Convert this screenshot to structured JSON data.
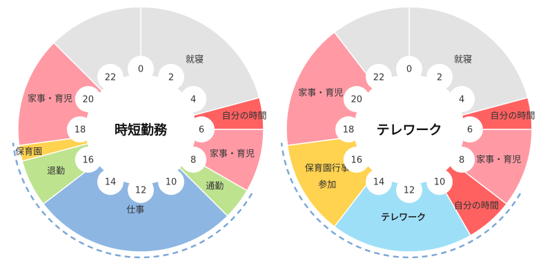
{
  "colors": {
    "sleep": "#e3e3e3",
    "personal": "#ff6161",
    "family": "#ff9aa5",
    "commute": "#bee38f",
    "work": "#8db6e3",
    "daycare": "#ffd24f",
    "telework": "#9edff8",
    "dash": "#7aa6d6"
  },
  "hour_labels": [
    "0",
    "2",
    "4",
    "6",
    "8",
    "10",
    "12",
    "14",
    "16",
    "18",
    "20",
    "22"
  ],
  "charts": [
    {
      "title": "時短勤務",
      "segments": [
        {
          "start": 0,
          "end": 5,
          "label": "就寝",
          "color": "sleep"
        },
        {
          "start": 5,
          "end": 6,
          "label": "自分の時間",
          "color": "personal"
        },
        {
          "start": 6,
          "end": 8,
          "label": "家事・育児",
          "color": "family"
        },
        {
          "start": 8,
          "end": 9,
          "label": "通勤",
          "color": "commute"
        },
        {
          "start": 9,
          "end": 15.5,
          "label": "仕事",
          "color": "work"
        },
        {
          "start": 15.5,
          "end": 17,
          "label": "退勤",
          "color": "commute"
        },
        {
          "start": 17,
          "end": 17.5,
          "label": "保育園",
          "color": "daycare"
        },
        {
          "start": 17.5,
          "end": 21,
          "label": "家事・育児",
          "color": "family"
        },
        {
          "start": 21,
          "end": 24,
          "label": "",
          "color": "sleep"
        }
      ]
    },
    {
      "title": "テレワーク",
      "segments": [
        {
          "start": 0,
          "end": 5,
          "label": "就寝",
          "color": "sleep"
        },
        {
          "start": 5,
          "end": 6,
          "label": "自分の時間",
          "color": "personal"
        },
        {
          "start": 6,
          "end": 8.5,
          "label": "家事・育児",
          "color": "family"
        },
        {
          "start": 8.5,
          "end": 10,
          "label": "自分の時間",
          "color": "personal"
        },
        {
          "start": 10,
          "end": 14.5,
          "label": "テレワーク",
          "color": "telework"
        },
        {
          "start": 14.5,
          "end": 17.5,
          "label": "保育園行事\n参加",
          "color": "daycare"
        },
        {
          "start": 17.5,
          "end": 21.5,
          "label": "家事・育児",
          "color": "family"
        },
        {
          "start": 21.5,
          "end": 24,
          "label": "",
          "color": "sleep"
        }
      ]
    }
  ]
}
